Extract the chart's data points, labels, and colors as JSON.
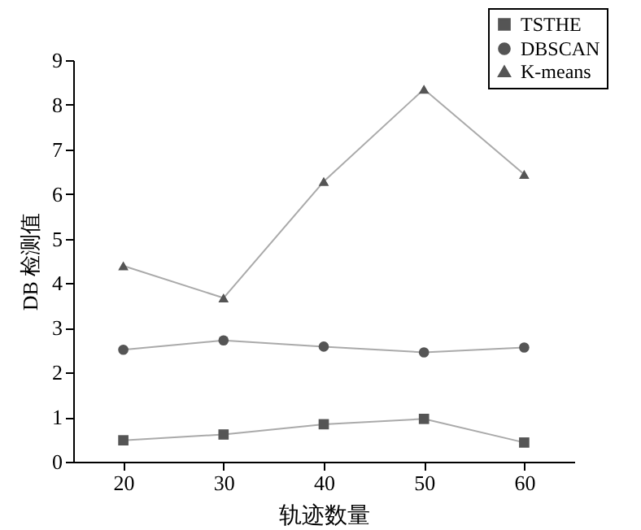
{
  "chart_data": {
    "type": "line",
    "xlabel": "轨迹数量",
    "ylabel": "DB 检测值",
    "x": [
      20,
      30,
      40,
      50,
      60
    ],
    "series": [
      {
        "name": "TSTHE",
        "color": "#555555",
        "marker": "square",
        "values": [
          0.48,
          0.61,
          0.84,
          0.96,
          0.43
        ]
      },
      {
        "name": "DBSCAN",
        "color": "#555555",
        "marker": "circle",
        "values": [
          2.51,
          2.72,
          2.58,
          2.45,
          2.56
        ]
      },
      {
        "name": "K-means",
        "color": "#555555",
        "marker": "triangle",
        "values": [
          4.39,
          3.67,
          6.28,
          8.35,
          6.44
        ]
      }
    ],
    "xlim": [
      15,
      65
    ],
    "xticks": [
      20,
      30,
      40,
      50,
      60
    ],
    "ylim": [
      0,
      9
    ],
    "yticks": [
      0,
      1,
      2,
      3,
      4,
      5,
      6,
      7,
      8,
      9
    ],
    "grid": false,
    "legend": "top right",
    "line_style": "solid"
  }
}
